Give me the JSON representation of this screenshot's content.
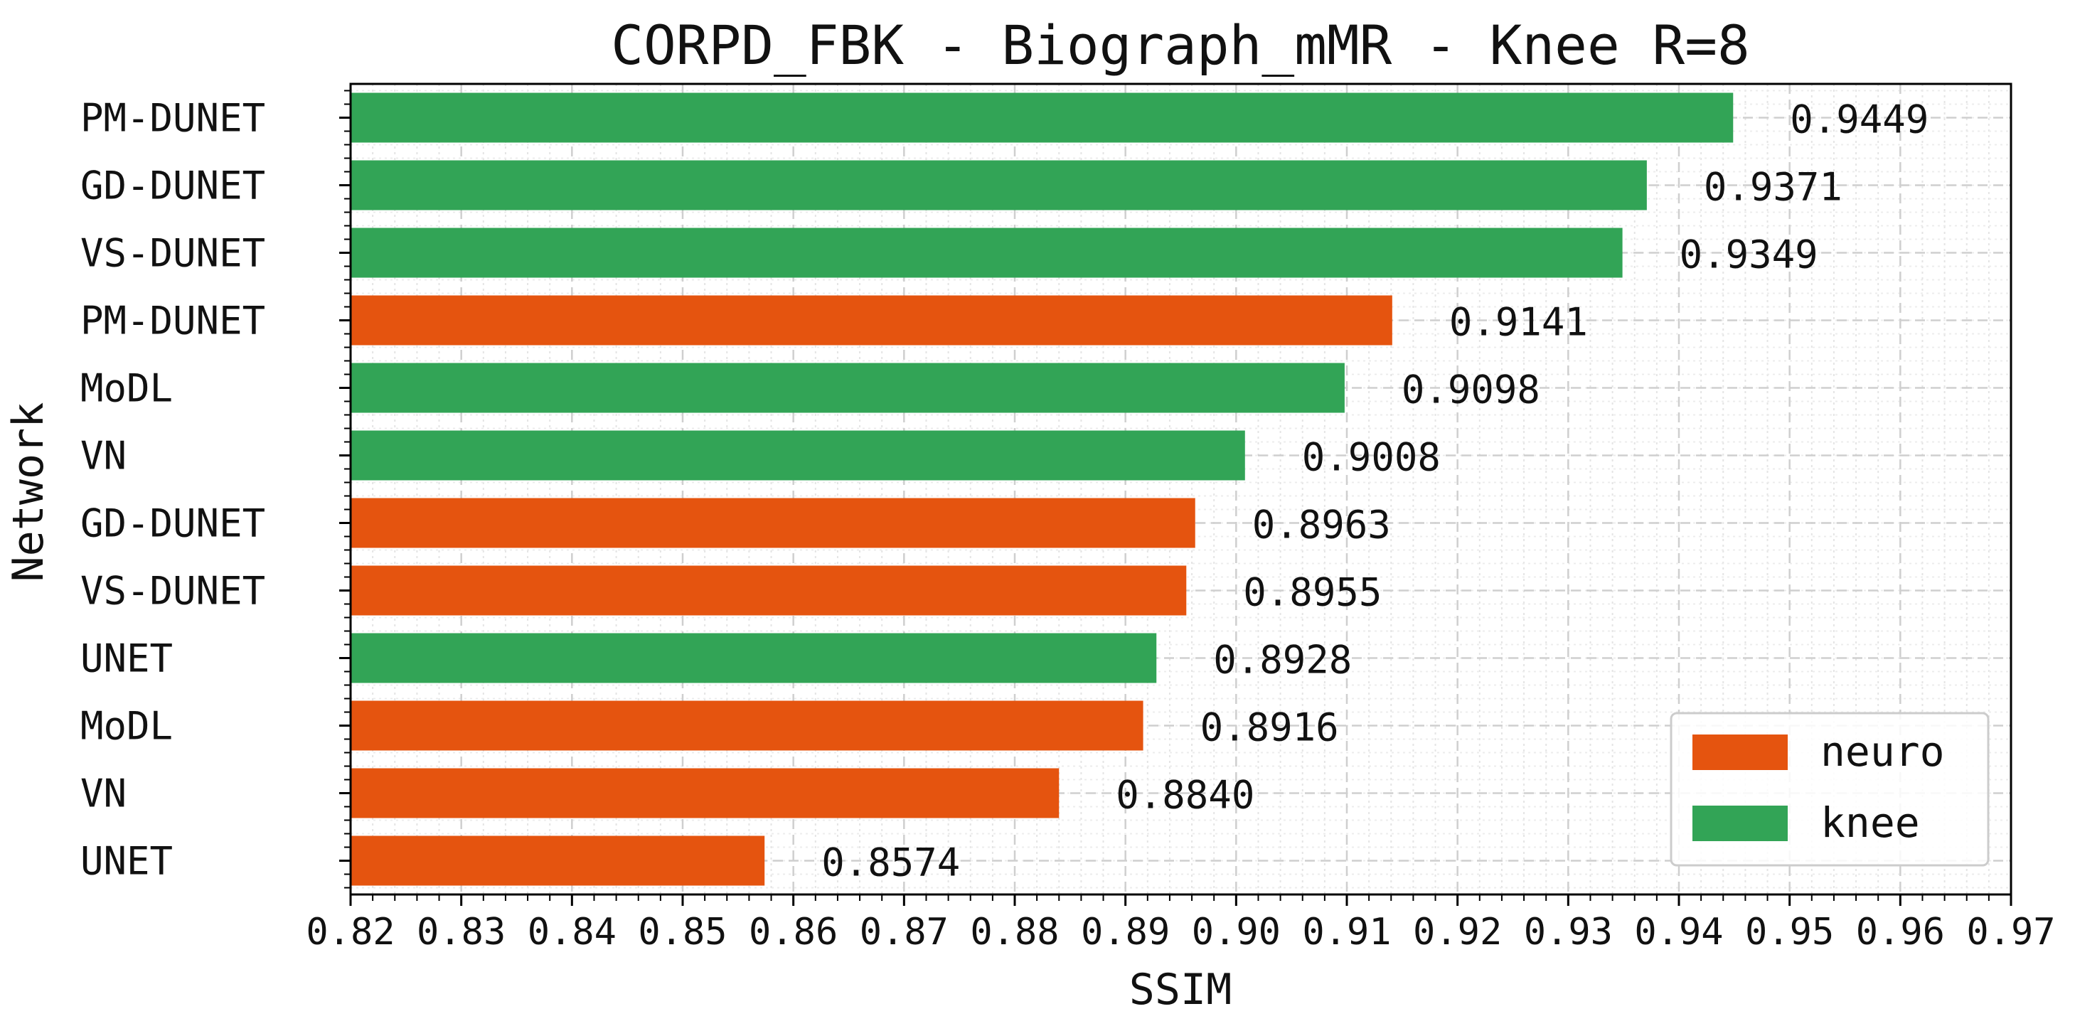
{
  "chart_data": {
    "type": "bar",
    "orientation": "horizontal",
    "title": "CORPD_FBK - Biograph_mMR - Knee R=8",
    "xlabel": "SSIM",
    "ylabel": "Network",
    "xlim": [
      0.82,
      0.97
    ],
    "xticks": [
      "0.82",
      "0.83",
      "0.84",
      "0.85",
      "0.86",
      "0.87",
      "0.88",
      "0.89",
      "0.90",
      "0.91",
      "0.92",
      "0.93",
      "0.94",
      "0.95",
      "0.96",
      "0.97"
    ],
    "grid": true,
    "legend_position": "bottom-right",
    "series_colors": {
      "neuro": "#e5540f",
      "knee": "#32a456"
    },
    "legend": [
      {
        "name": "neuro",
        "color": "#e5540f"
      },
      {
        "name": "knee",
        "color": "#32a456"
      }
    ],
    "bars": [
      {
        "category": "PM-DUNET",
        "series": "knee",
        "value": 0.9449,
        "label": "0.9449"
      },
      {
        "category": "GD-DUNET",
        "series": "knee",
        "value": 0.9371,
        "label": "0.9371"
      },
      {
        "category": "VS-DUNET",
        "series": "knee",
        "value": 0.9349,
        "label": "0.9349"
      },
      {
        "category": "PM-DUNET",
        "series": "neuro",
        "value": 0.9141,
        "label": "0.9141"
      },
      {
        "category": "MoDL",
        "series": "knee",
        "value": 0.9098,
        "label": "0.9098"
      },
      {
        "category": "VN",
        "series": "knee",
        "value": 0.9008,
        "label": "0.9008"
      },
      {
        "category": "GD-DUNET",
        "series": "neuro",
        "value": 0.8963,
        "label": "0.8963"
      },
      {
        "category": "VS-DUNET",
        "series": "neuro",
        "value": 0.8955,
        "label": "0.8955"
      },
      {
        "category": "UNET",
        "series": "knee",
        "value": 0.8928,
        "label": "0.8928"
      },
      {
        "category": "MoDL",
        "series": "neuro",
        "value": 0.8916,
        "label": "0.8916"
      },
      {
        "category": "VN",
        "series": "neuro",
        "value": 0.884,
        "label": "0.8840"
      },
      {
        "category": "UNET",
        "series": "neuro",
        "value": 0.8574,
        "label": "0.8574"
      }
    ]
  }
}
